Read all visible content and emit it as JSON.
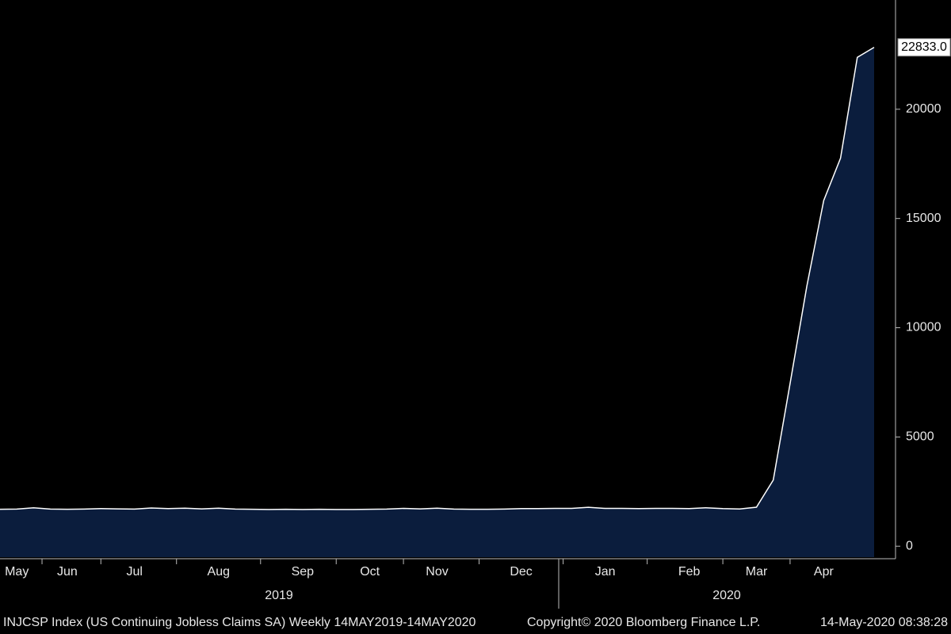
{
  "chart_data": {
    "type": "area",
    "categories": [
      null,
      "May",
      null,
      null,
      "Jun",
      null,
      null,
      null,
      "Jul",
      null,
      null,
      null,
      null,
      "Aug",
      null,
      null,
      null,
      null,
      "Sep",
      null,
      null,
      null,
      "Oct",
      null,
      null,
      null,
      "Nov",
      null,
      null,
      null,
      null,
      "Dec",
      null,
      null,
      null,
      null,
      "Jan",
      null,
      null,
      null,
      null,
      "Feb",
      null,
      null,
      null,
      "Mar",
      null,
      null,
      null,
      "Apr",
      null,
      null,
      null
    ],
    "years": [
      "2019",
      "2020"
    ],
    "values": [
      1690,
      1700,
      1760,
      1700,
      1690,
      1700,
      1720,
      1710,
      1700,
      1750,
      1720,
      1740,
      1710,
      1740,
      1700,
      1690,
      1680,
      1690,
      1680,
      1690,
      1680,
      1680,
      1690,
      1700,
      1730,
      1710,
      1740,
      1700,
      1690,
      1690,
      1700,
      1720,
      1720,
      1730,
      1730,
      1780,
      1730,
      1730,
      1720,
      1730,
      1730,
      1720,
      1760,
      1720,
      1703,
      1784,
      3029,
      7446,
      11914,
      15819,
      17756,
      22377,
      22833
    ],
    "value_labels": [
      null,
      null,
      null,
      null,
      null,
      null,
      null,
      null,
      null,
      null,
      null,
      null,
      null,
      null,
      null,
      null,
      null,
      null,
      null,
      null,
      null,
      null,
      null,
      null,
      null,
      null,
      null,
      null,
      null,
      null,
      null,
      null,
      null,
      null,
      null,
      null,
      null,
      null,
      null,
      null,
      null,
      null,
      null,
      null,
      null,
      null,
      null,
      null,
      null,
      null,
      null,
      null,
      "22833.0"
    ],
    "color": "#0b1d3d",
    "line_color": "#ffffff",
    "ylim": [
      -500,
      25000
    ],
    "yticks": [
      0,
      5000,
      10000,
      15000,
      20000
    ],
    "footer": [
      "INJCSP Index (US Continuing Jobless Claims SA)  Weekly 14MAY2019-14MAY2020",
      "Copyright© 2020 Bloomberg Finance L.P.",
      "14-May-2020 08:38:28"
    ]
  }
}
